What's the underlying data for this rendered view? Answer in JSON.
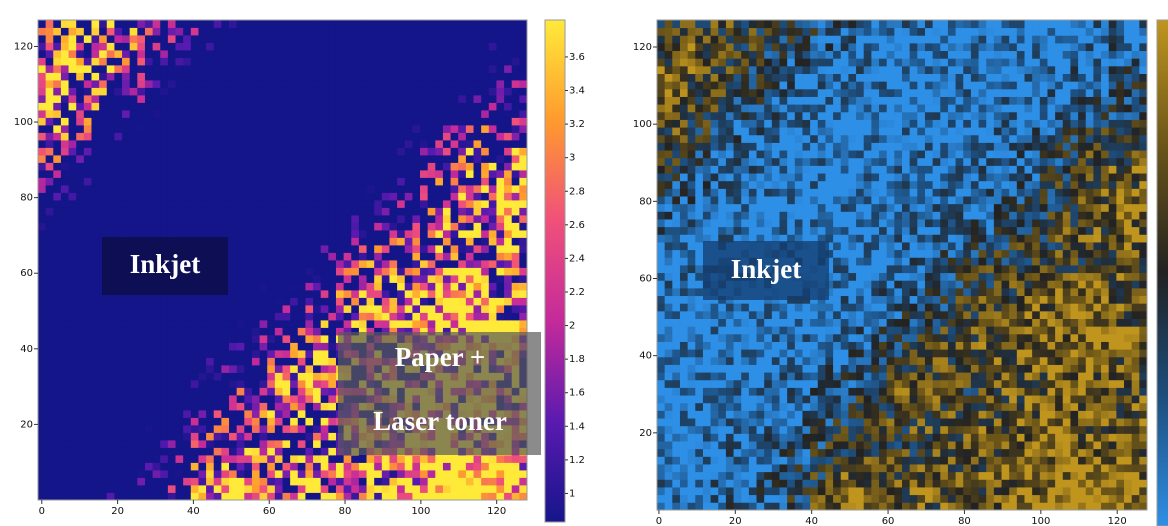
{
  "chart_data": [
    {
      "type": "heatmap",
      "xlim": [
        -1,
        128
      ],
      "ylim": [
        0,
        127
      ],
      "xticks": [
        0,
        20,
        40,
        60,
        80,
        100,
        120
      ],
      "yticks": [
        20,
        40,
        60,
        80,
        100,
        120
      ],
      "colormap": [
        "#15158a",
        "#5a1ab0",
        "#c42a9a",
        "#f0507a",
        "#ff9a2e",
        "#ffea3a"
      ],
      "colorbar": {
        "lim": [
          0.83,
          3.82
        ],
        "ticks": [
          1,
          1.2,
          1.4,
          1.6,
          1.8,
          2,
          2.2,
          2.4,
          2.6,
          2.8,
          3,
          3.2,
          3.4,
          3.6
        ]
      },
      "annotations": [
        "Inkjet",
        "Paper +",
        "Laser toner"
      ]
    },
    {
      "type": "heatmap",
      "xlim": [
        -0.5,
        127.8
      ],
      "ylim": [
        0,
        127
      ],
      "xticks": [
        0,
        20,
        40,
        60,
        80,
        100,
        120
      ],
      "yticks": [
        20,
        40,
        60,
        80,
        100,
        120
      ],
      "colormap": [
        "#2e8fe6",
        "#1d4f80",
        "#222222",
        "#6a5418",
        "#c0951e"
      ],
      "annotations": [
        "Inkjet"
      ]
    }
  ]
}
